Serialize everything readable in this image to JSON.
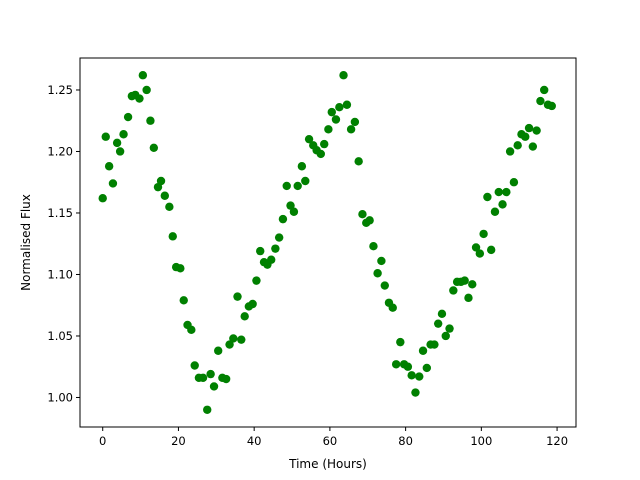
{
  "chart_data": {
    "type": "scatter",
    "title": "",
    "xlabel": "Time (Hours)",
    "ylabel": "Normalised Flux",
    "xlim": [
      -6,
      125
    ],
    "ylim": [
      0.976,
      1.276
    ],
    "xticks": [
      0,
      20,
      40,
      60,
      80,
      100,
      120
    ],
    "yticks": [
      1.0,
      1.05,
      1.1,
      1.15,
      1.2,
      1.25
    ],
    "xtick_labels": [
      "0",
      "20",
      "40",
      "60",
      "80",
      "100",
      "120"
    ],
    "ytick_labels": [
      "1.00",
      "1.05",
      "1.10",
      "1.15",
      "1.20",
      "1.25"
    ],
    "grid": false,
    "legend": null,
    "marker_color": "#008000",
    "series": [
      {
        "x": [
          0.0,
          0.8,
          1.7,
          2.7,
          3.8,
          4.6,
          5.5,
          6.7,
          7.7,
          8.6,
          9.7,
          10.6,
          11.6,
          12.6,
          13.5,
          14.6,
          15.4,
          16.4,
          17.6,
          18.5,
          19.4,
          20.5,
          21.4,
          22.4,
          23.4,
          24.3,
          25.4,
          26.5,
          27.6,
          28.5,
          29.4,
          30.5,
          31.6,
          32.6,
          33.5,
          34.5,
          35.6,
          36.6,
          37.5,
          38.6,
          39.6,
          40.6,
          41.6,
          42.6,
          43.5,
          44.5,
          45.6,
          46.6,
          47.6,
          48.6,
          49.6,
          50.5,
          51.5,
          52.6,
          53.5,
          54.5,
          55.6,
          56.5,
          57.6,
          58.5,
          59.6,
          60.5,
          61.6,
          62.5,
          63.6,
          64.5,
          65.6,
          66.6,
          67.6,
          68.6,
          69.6,
          70.5,
          71.5,
          72.6,
          73.6,
          74.5,
          75.6,
          76.6,
          77.5,
          78.6,
          79.6,
          80.6,
          81.6,
          82.6,
          83.6,
          84.6,
          85.6,
          86.6,
          87.6,
          88.6,
          89.6,
          90.6,
          91.6,
          92.6,
          93.6,
          94.6,
          95.6,
          96.6,
          97.6,
          98.6,
          99.6,
          100.6,
          101.6,
          102.6,
          103.6,
          104.6,
          105.6,
          106.6,
          107.6,
          108.6,
          109.6,
          110.6,
          111.6,
          112.6,
          113.6,
          114.6,
          115.6,
          116.6,
          117.6,
          118.6
        ],
        "y": [
          1.162,
          1.212,
          1.188,
          1.174,
          1.207,
          1.2,
          1.214,
          1.228,
          1.245,
          1.246,
          1.243,
          1.262,
          1.25,
          1.225,
          1.203,
          1.171,
          1.176,
          1.164,
          1.155,
          1.131,
          1.106,
          1.105,
          1.079,
          1.059,
          1.055,
          1.026,
          1.016,
          1.016,
          0.99,
          1.019,
          1.009,
          1.038,
          1.016,
          1.015,
          1.043,
          1.048,
          1.082,
          1.047,
          1.066,
          1.074,
          1.076,
          1.095,
          1.119,
          1.11,
          1.108,
          1.112,
          1.121,
          1.13,
          1.145,
          1.172,
          1.156,
          1.151,
          1.172,
          1.188,
          1.176,
          1.21,
          1.205,
          1.201,
          1.198,
          1.206,
          1.218,
          1.232,
          1.226,
          1.236,
          1.262,
          1.238,
          1.218,
          1.224,
          1.192,
          1.149,
          1.142,
          1.144,
          1.123,
          1.101,
          1.111,
          1.091,
          1.077,
          1.073,
          1.027,
          1.045,
          1.027,
          1.025,
          1.018,
          1.004,
          1.017,
          1.038,
          1.024,
          1.043,
          1.043,
          1.06,
          1.068,
          1.05,
          1.056,
          1.087,
          1.094,
          1.094,
          1.095,
          1.081,
          1.092,
          1.122,
          1.117,
          1.133,
          1.163,
          1.12,
          1.151,
          1.167,
          1.157,
          1.167,
          1.2,
          1.175,
          1.205,
          1.214,
          1.212,
          1.219,
          1.204,
          1.217,
          1.241,
          1.25,
          1.238,
          1.237
        ]
      }
    ]
  }
}
